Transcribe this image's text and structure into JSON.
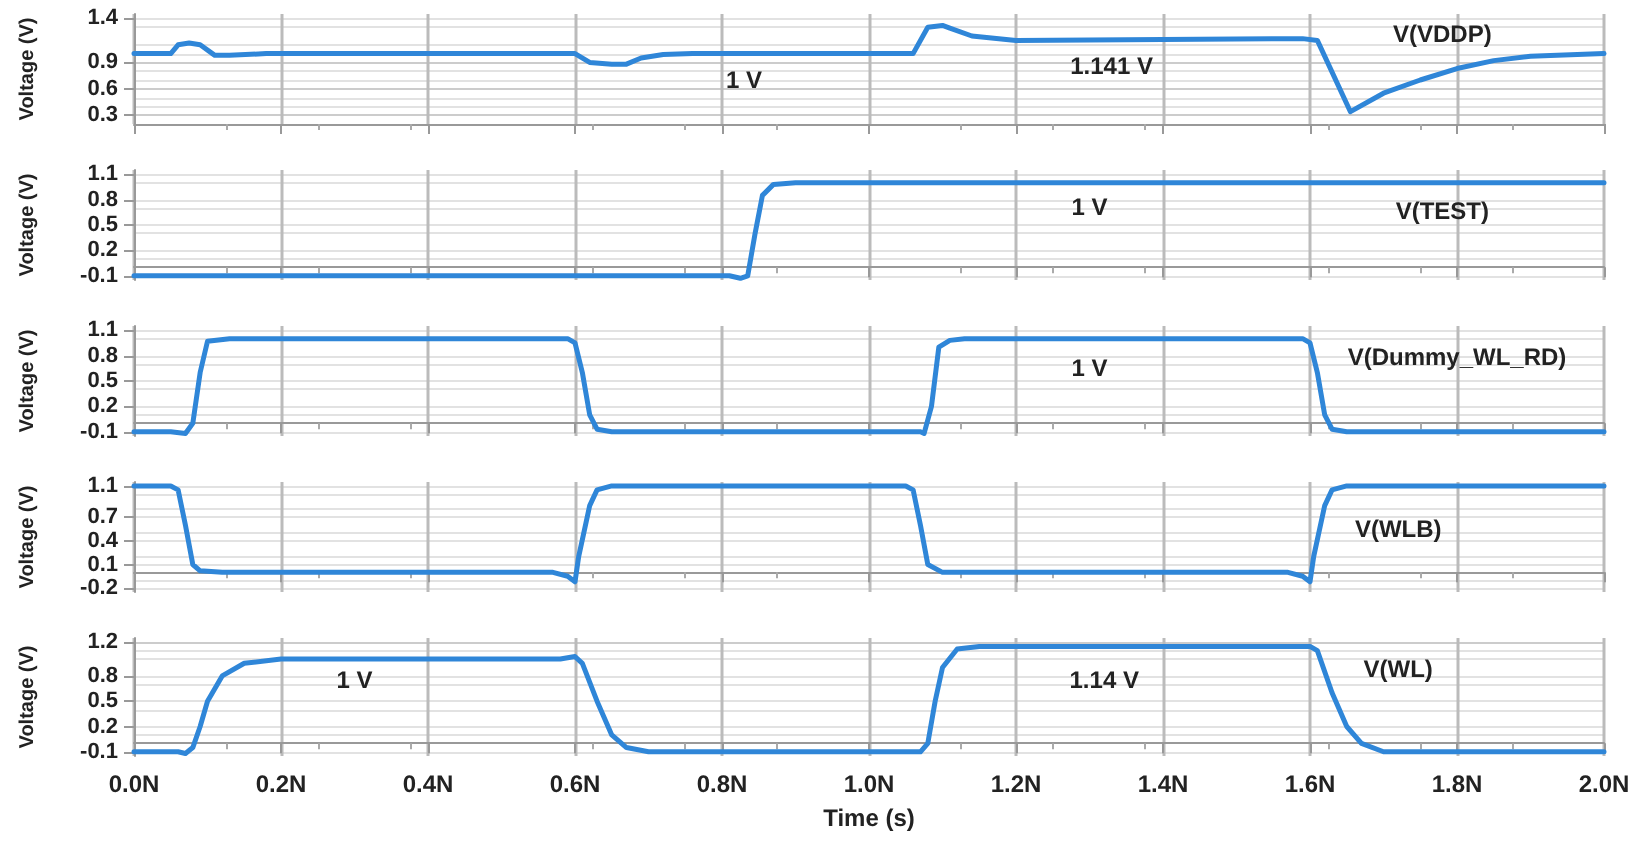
{
  "chart_data": [
    {
      "type": "line",
      "ylabel": "Voltage (V)",
      "xlim": [
        0,
        2
      ],
      "xticks": [
        0,
        0.2,
        0.4,
        0.6,
        0.8,
        1,
        1.2,
        1.4,
        1.6,
        1.8,
        2
      ],
      "ylim": [
        0.2,
        1.45
      ],
      "yticks": [
        0.3,
        0.6,
        0.9,
        1.4
      ],
      "tick_labels": "y",
      "grid": true,
      "marker": "none",
      "annotations": [
        "1 V",
        "1.141 V"
      ],
      "series": [
        {
          "name": "V(VDDP)",
          "color": "#2f86d8",
          "x": [
            0,
            0.05,
            0.06,
            0.075,
            0.09,
            0.11,
            0.13,
            0.18,
            0.6,
            0.62,
            0.65,
            0.67,
            0.69,
            0.72,
            0.76,
            1.06,
            1.08,
            1.1,
            1.11,
            1.14,
            1.2,
            1.59,
            1.61,
            1.655,
            1.7,
            1.75,
            1.8,
            1.85,
            1.9,
            2
          ],
          "values": [
            1,
            1,
            1.1,
            1.12,
            1.1,
            0.98,
            0.98,
            1,
            1,
            0.9,
            0.88,
            0.88,
            0.95,
            0.99,
            1,
            1,
            1.3,
            1.32,
            1.29,
            1.2,
            1.15,
            1.17,
            1.15,
            0.34,
            0.55,
            0.7,
            0.83,
            0.92,
            0.97,
            1
          ]
        }
      ]
    },
    {
      "type": "line",
      "ylabel": "Voltage (V)",
      "xlim": [
        0,
        2
      ],
      "xticks": [
        0,
        0.2,
        0.4,
        0.6,
        0.8,
        1,
        1.2,
        1.4,
        1.6,
        1.8,
        2
      ],
      "ylim": [
        -0.15,
        1.15
      ],
      "yticks": [
        -0.1,
        0.2,
        0.5,
        0.8,
        1.1
      ],
      "tick_labels": "y",
      "grid": true,
      "marker": "none",
      "annotations": [
        "1 V"
      ],
      "series": [
        {
          "name": "V(TEST)",
          "color": "#2f86d8",
          "x": [
            0,
            0.81,
            0.825,
            0.835,
            0.845,
            0.855,
            0.87,
            0.9,
            2
          ],
          "values": [
            -0.1,
            -0.1,
            -0.13,
            -0.1,
            0.4,
            0.85,
            0.98,
            1,
            1
          ]
        }
      ]
    },
    {
      "type": "line",
      "ylabel": "Voltage (V)",
      "xlim": [
        0,
        2
      ],
      "xticks": [
        0,
        0.2,
        0.4,
        0.6,
        0.8,
        1,
        1.2,
        1.4,
        1.6,
        1.8,
        2
      ],
      "ylim": [
        -0.15,
        1.15
      ],
      "yticks": [
        -0.1,
        0.2,
        0.5,
        0.8,
        1.1
      ],
      "tick_labels": "y",
      "grid": true,
      "marker": "none",
      "annotations": [
        "1 V"
      ],
      "series": [
        {
          "name": "V(Dummy_WL_RD)",
          "color": "#2f86d8",
          "x": [
            0,
            0.05,
            0.07,
            0.08,
            0.09,
            0.1,
            0.13,
            0.59,
            0.6,
            0.61,
            0.62,
            0.63,
            0.65,
            1.07,
            1.075,
            1.085,
            1.095,
            1.11,
            1.13,
            1.59,
            1.6,
            1.61,
            1.62,
            1.63,
            1.65,
            2
          ],
          "values": [
            -0.1,
            -0.1,
            -0.12,
            0,
            0.6,
            0.97,
            1,
            1,
            0.95,
            0.6,
            0.1,
            -0.07,
            -0.1,
            -0.1,
            -0.12,
            0.2,
            0.9,
            0.98,
            1,
            1,
            0.95,
            0.6,
            0.1,
            -0.07,
            -0.1,
            -0.1
          ]
        }
      ]
    },
    {
      "type": "line",
      "ylabel": "Voltage (V)",
      "xlim": [
        0,
        2
      ],
      "xticks": [
        0,
        0.2,
        0.4,
        0.6,
        0.8,
        1,
        1.2,
        1.4,
        1.6,
        1.8,
        2
      ],
      "ylim": [
        -0.25,
        1.15
      ],
      "yticks": [
        -0.2,
        0.1,
        0.4,
        0.7,
        1.1
      ],
      "tick_labels": "y",
      "grid": true,
      "marker": "none",
      "series": [
        {
          "name": "V(WLB)",
          "color": "#2f86d8",
          "x": [
            0,
            0.05,
            0.06,
            0.07,
            0.08,
            0.09,
            0.12,
            0.57,
            0.59,
            0.6,
            0.605,
            0.62,
            0.63,
            0.65,
            1.05,
            1.06,
            1.07,
            1.08,
            1.1,
            1.57,
            1.59,
            1.6,
            1.605,
            1.62,
            1.63,
            1.65,
            2
          ],
          "values": [
            1.1,
            1.1,
            1.05,
            0.6,
            0.1,
            0.02,
            0,
            0,
            -0.05,
            -0.12,
            0.2,
            0.85,
            1.05,
            1.1,
            1.1,
            1.05,
            0.6,
            0.1,
            0,
            0,
            -0.05,
            -0.12,
            0.2,
            0.85,
            1.05,
            1.1,
            1.1
          ]
        }
      ]
    },
    {
      "type": "line",
      "ylabel": "Voltage (V)",
      "xlabel": "Time (s)",
      "xlim": [
        0,
        2
      ],
      "xticks": [
        {
          "value": 0,
          "label": "0.0N"
        },
        {
          "value": 0.2,
          "label": "0.2N"
        },
        {
          "value": 0.4,
          "label": "0.4N"
        },
        {
          "value": 0.6,
          "label": "0.6N"
        },
        {
          "value": 0.8,
          "label": "0.8N"
        },
        {
          "value": 1,
          "label": "1.0N"
        },
        {
          "value": 1.2,
          "label": "1.2N"
        },
        {
          "value": 1.4,
          "label": "1.4N"
        },
        {
          "value": 1.6,
          "label": "1.6N"
        },
        {
          "value": 1.8,
          "label": "1.8N"
        },
        {
          "value": 2,
          "label": "2.0N"
        }
      ],
      "ylim": [
        -0.15,
        1.25
      ],
      "yticks": [
        -0.1,
        0.2,
        0.5,
        0.8,
        1.2
      ],
      "grid": true,
      "marker": "none",
      "annotations": [
        "1 V",
        "1.14 V"
      ],
      "series": [
        {
          "name": "V(WL)",
          "color": "#2f86d8",
          "x": [
            0,
            0.06,
            0.07,
            0.08,
            0.09,
            0.1,
            0.12,
            0.15,
            0.2,
            0.58,
            0.6,
            0.61,
            0.63,
            0.65,
            0.67,
            0.7,
            1.07,
            1.08,
            1.09,
            1.1,
            1.12,
            1.15,
            1.6,
            1.61,
            1.63,
            1.65,
            1.67,
            1.7,
            2
          ],
          "values": [
            -0.1,
            -0.1,
            -0.12,
            -0.05,
            0.2,
            0.5,
            0.8,
            0.95,
            1,
            1,
            1.03,
            0.95,
            0.5,
            0.1,
            -0.05,
            -0.1,
            -0.1,
            0,
            0.5,
            0.9,
            1.12,
            1.15,
            1.15,
            1.1,
            0.6,
            0.2,
            0,
            -0.1,
            -0.1
          ]
        }
      ]
    }
  ]
}
